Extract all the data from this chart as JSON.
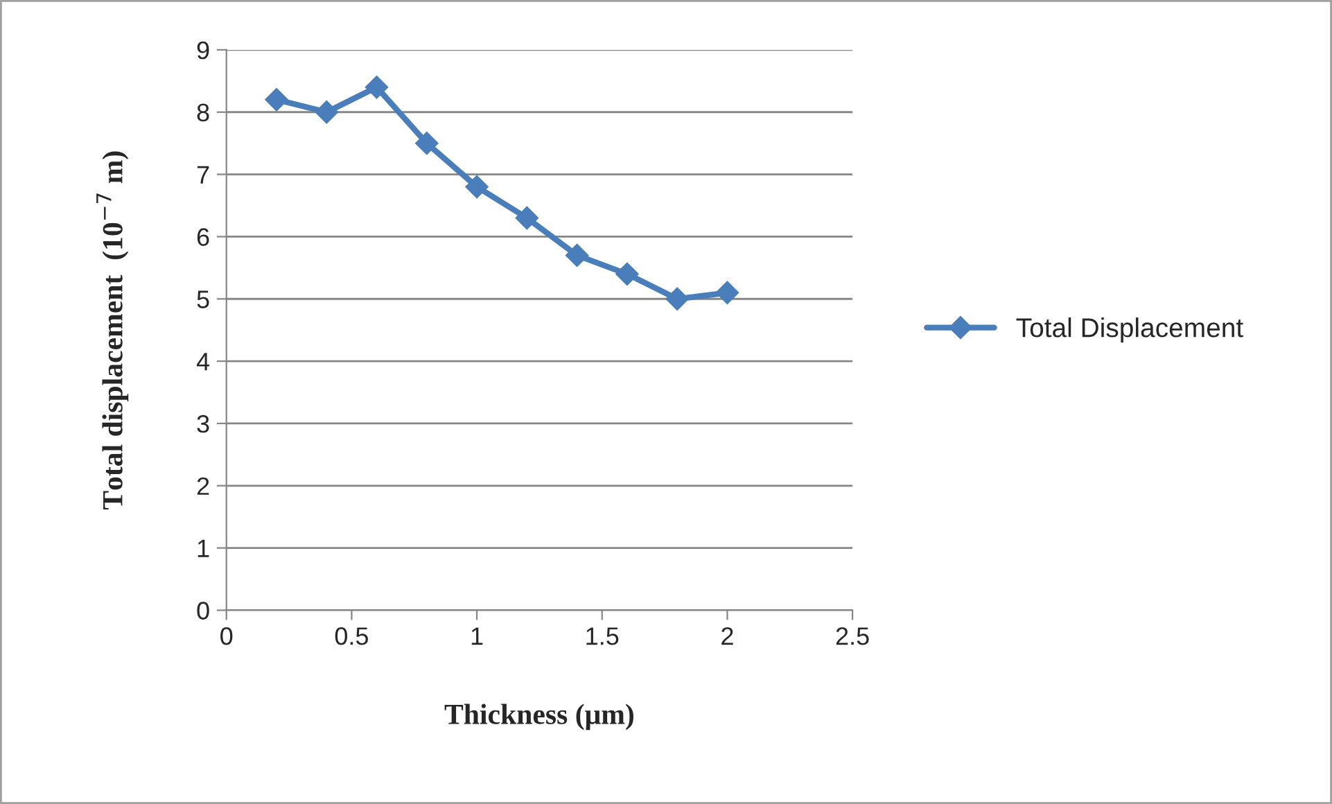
{
  "chart_data": {
    "type": "line",
    "xlabel": "Thickness (μm)",
    "ylabel": "Total displacement  (10$^{−7}$ m)",
    "x": [
      0.2,
      0.4,
      0.6,
      0.8,
      1.0,
      1.2,
      1.4,
      1.6,
      1.8,
      2.0
    ],
    "series": [
      {
        "name": "Total Displacement",
        "color": "#4a7ebb",
        "values": [
          8.2,
          8.0,
          8.4,
          7.5,
          6.8,
          6.3,
          5.7,
          5.4,
          5.0,
          5.1
        ]
      }
    ],
    "xlim": [
      0,
      2.5
    ],
    "xticks": [
      0,
      0.5,
      1,
      1.5,
      2,
      2.5
    ],
    "ylim": [
      0,
      9
    ],
    "yticks": [
      0,
      1,
      2,
      3,
      4,
      5,
      6,
      7,
      8,
      9
    ],
    "grid": "y",
    "legend": "right",
    "marker": "diamond",
    "line_style": "solid"
  }
}
